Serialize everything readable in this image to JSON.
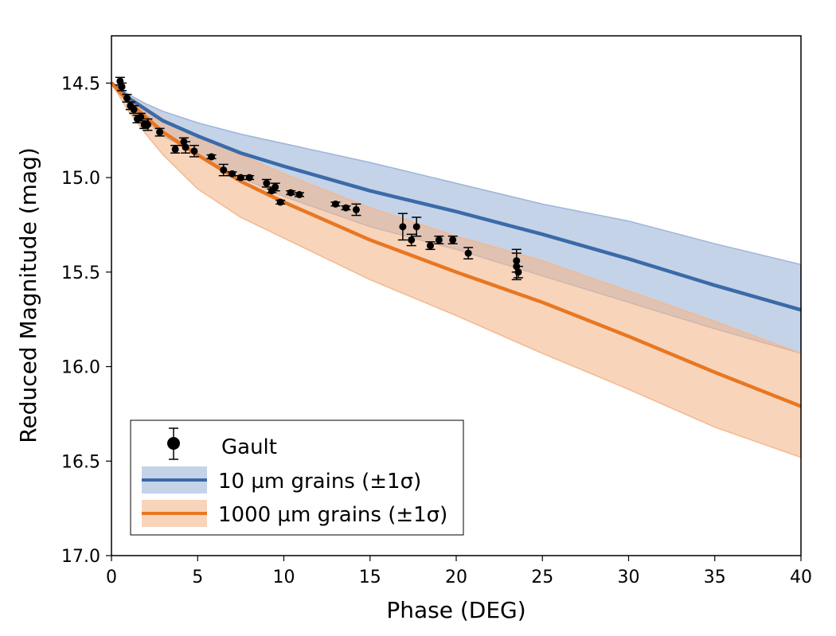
{
  "chart_data": {
    "type": "line",
    "title": "",
    "xlabel": "Phase (DEG)",
    "ylabel": "Reduced Magnitude (mag)",
    "xlim": [
      0,
      40
    ],
    "ylim": [
      17.0,
      14.25
    ],
    "y_inverted": true,
    "xticks": [
      0,
      5,
      10,
      15,
      20,
      25,
      30,
      35,
      40
    ],
    "xtick_labels": [
      "0",
      "5",
      "10",
      "15",
      "20",
      "25",
      "30",
      "35",
      "40"
    ],
    "yticks": [
      14.5,
      15.0,
      15.5,
      16.0,
      16.5,
      17.0
    ],
    "ytick_labels": [
      "14.5",
      "15.0",
      "15.5",
      "16.0",
      "16.5",
      "17.0"
    ],
    "grid": false,
    "legend_position": "bottom-left",
    "colors": {
      "blue": "#3b6aa8",
      "blue_fill": "#9cb6d8",
      "orange": "#e87722",
      "orange_fill": "#f4b88e",
      "points": "#000000"
    },
    "series": [
      {
        "name": "10 µm grains (±1σ)",
        "kind": "model",
        "color_key": "blue",
        "x": [
          0,
          1,
          2,
          3,
          5,
          7.5,
          10,
          15,
          20,
          25,
          30,
          35,
          40
        ],
        "y": [
          14.5,
          14.58,
          14.64,
          14.7,
          14.78,
          14.87,
          14.94,
          15.07,
          15.18,
          15.3,
          15.43,
          15.57,
          15.7
        ],
        "lower": [
          14.5,
          14.56,
          14.61,
          14.65,
          14.71,
          14.77,
          14.82,
          14.92,
          15.03,
          15.14,
          15.23,
          15.35,
          15.46
        ],
        "upper": [
          14.5,
          14.61,
          14.7,
          14.78,
          14.88,
          15.0,
          15.1,
          15.26,
          15.38,
          15.52,
          15.66,
          15.8,
          15.93
        ]
      },
      {
        "name": "1000 µm grains (±1σ)",
        "kind": "model",
        "color_key": "orange",
        "x": [
          0,
          1,
          2,
          3,
          5,
          7.5,
          10,
          15,
          20,
          25,
          30,
          35,
          40
        ],
        "y": [
          14.5,
          14.6,
          14.68,
          14.76,
          14.88,
          15.02,
          15.13,
          15.33,
          15.5,
          15.66,
          15.84,
          16.03,
          16.21
        ],
        "lower": [
          14.5,
          14.57,
          14.63,
          14.69,
          14.78,
          14.88,
          14.98,
          15.16,
          15.31,
          15.44,
          15.6,
          15.76,
          15.93
        ],
        "upper": [
          14.5,
          14.65,
          14.77,
          14.88,
          15.06,
          15.21,
          15.32,
          15.54,
          15.73,
          15.93,
          16.12,
          16.32,
          16.48
        ]
      },
      {
        "name": "Gault",
        "kind": "points",
        "color_key": "points",
        "x": [
          0.5,
          0.6,
          0.9,
          1.1,
          1.3,
          1.5,
          1.7,
          1.9,
          2.1,
          2.8,
          3.7,
          4.2,
          4.3,
          4.8,
          5.8,
          6.5,
          7.0,
          7.5,
          8.0,
          9.0,
          9.3,
          9.5,
          9.8,
          10.4,
          10.9,
          13.0,
          13.6,
          14.2,
          16.9,
          17.4,
          17.7,
          18.5,
          19.0,
          19.8,
          20.7,
          23.5,
          23.5,
          23.6
        ],
        "y": [
          14.49,
          14.52,
          14.58,
          14.62,
          14.64,
          14.69,
          14.68,
          14.72,
          14.72,
          14.76,
          14.85,
          14.81,
          14.84,
          14.86,
          14.89,
          14.96,
          14.98,
          15.0,
          15.0,
          15.03,
          15.07,
          15.05,
          15.13,
          15.08,
          15.09,
          15.14,
          15.16,
          15.17,
          15.26,
          15.33,
          15.26,
          15.36,
          15.33,
          15.33,
          15.4,
          15.44,
          15.47,
          15.5
        ],
        "yerr": [
          0.02,
          0.02,
          0.02,
          0.02,
          0.02,
          0.02,
          0.02,
          0.02,
          0.03,
          0.02,
          0.02,
          0.02,
          0.03,
          0.03,
          0.01,
          0.03,
          0.01,
          0.01,
          0.01,
          0.02,
          0.01,
          0.02,
          0.01,
          0.01,
          0.01,
          0.01,
          0.01,
          0.03,
          0.07,
          0.03,
          0.05,
          0.02,
          0.02,
          0.02,
          0.03,
          0.06,
          0.07,
          0.03
        ]
      }
    ]
  }
}
